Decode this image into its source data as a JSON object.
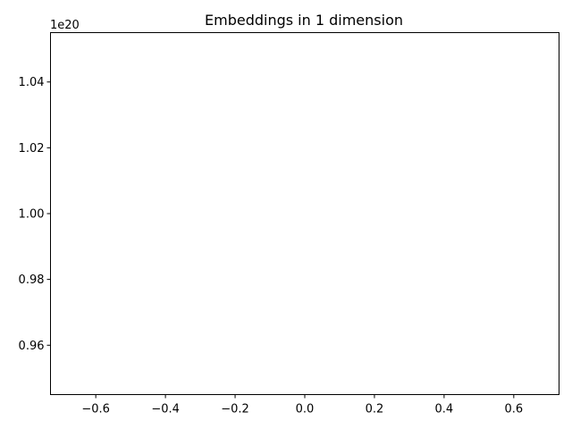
{
  "chart_data": {
    "type": "scatter",
    "title": "Embeddings in 1 dimension",
    "xlabel": "",
    "ylabel": "",
    "xlim": [
      -0.73,
      0.73
    ],
    "ylim": [
      0.945,
      1.055
    ],
    "y_offset_label": "1e20",
    "x_ticks": [
      -0.6,
      -0.4,
      -0.2,
      0.0,
      0.2,
      0.4,
      0.6
    ],
    "x_tick_labels": [
      "−0.6",
      "−0.4",
      "−0.2",
      "0.0",
      "0.2",
      "0.4",
      "0.6"
    ],
    "y_ticks": [
      0.96,
      0.98,
      1.0,
      1.02,
      1.04
    ],
    "y_tick_labels": [
      "0.96",
      "0.98",
      "1.00",
      "1.02",
      "1.04"
    ],
    "series": [],
    "grid": false,
    "legend": false
  }
}
